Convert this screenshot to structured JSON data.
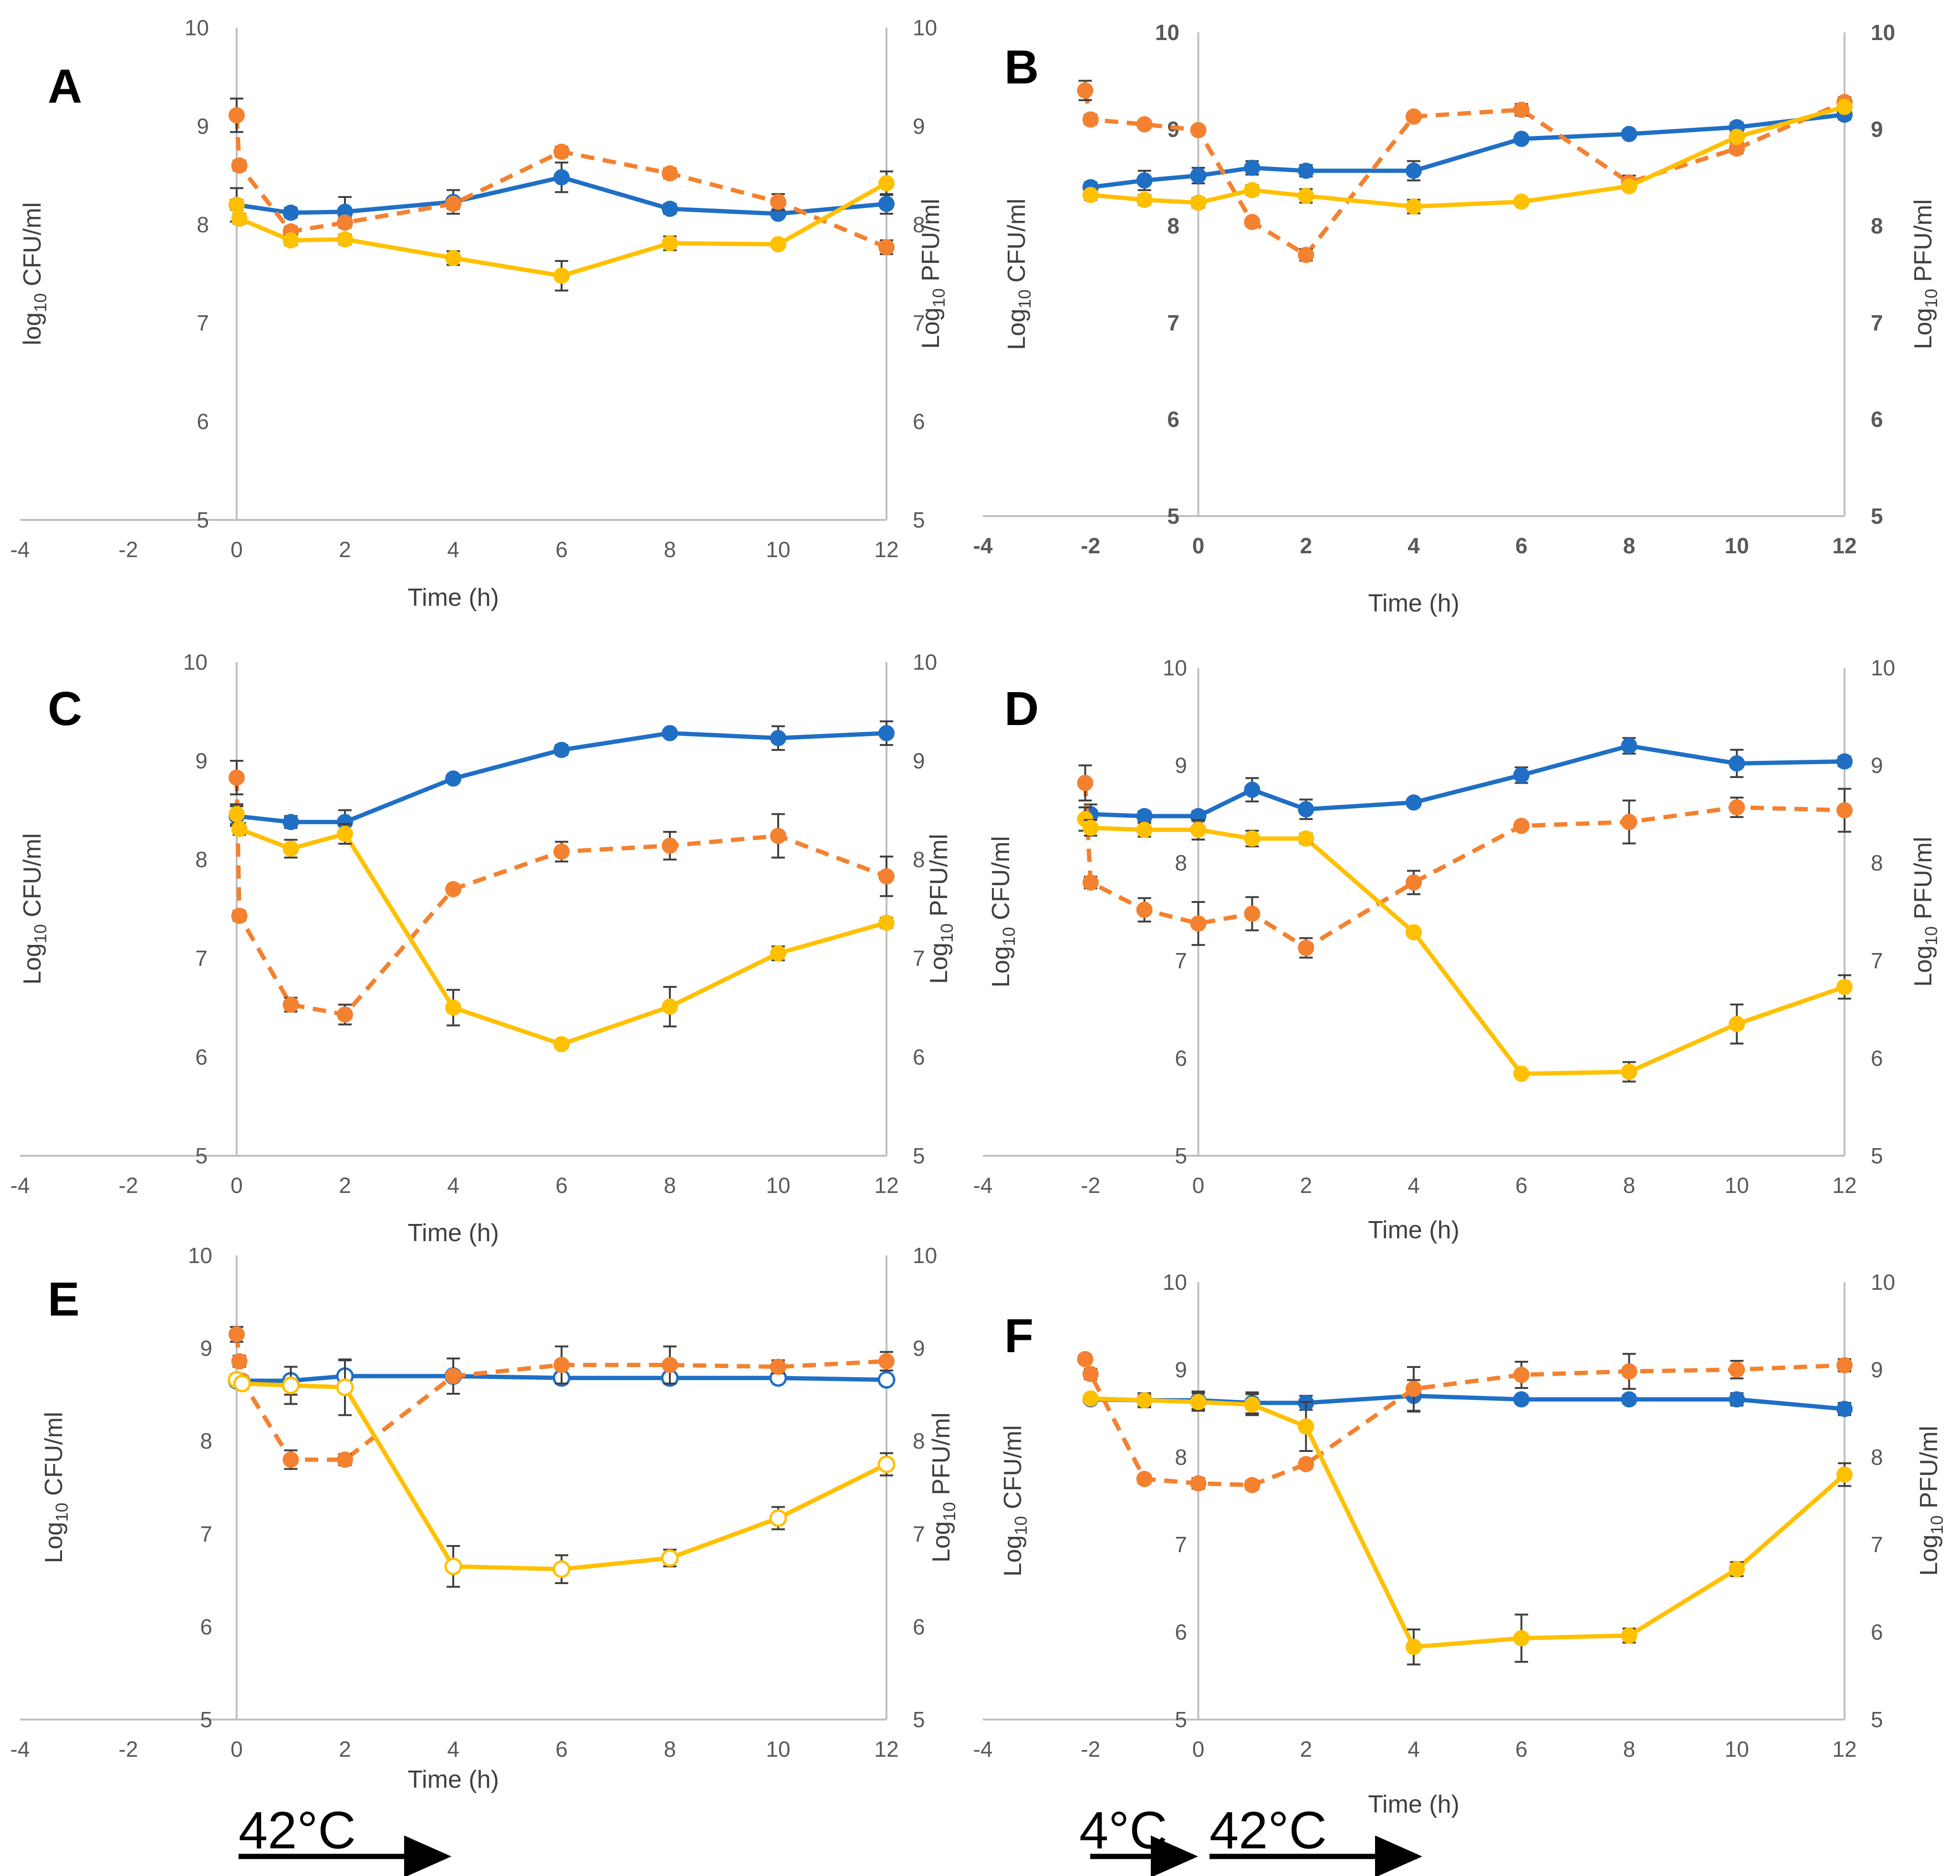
{
  "colors": {
    "blue": "#1f6fc5",
    "orange": "#f4812f",
    "yellow": "#ffc000",
    "axis": "#bfbfbf",
    "errbar": "#404040"
  },
  "chart_data": [
    {
      "type": "line",
      "panel": "A",
      "xlabel": "Time (h)",
      "ylabel_left": "log10 CFU/ml",
      "ylabel_right": "Log10 PFU/ml",
      "xlim": [
        -4,
        12
      ],
      "ylim": [
        5,
        10
      ],
      "xticks": [
        -4,
        -2,
        0,
        2,
        4,
        6,
        8,
        10,
        12
      ],
      "yticks": [
        5,
        6,
        7,
        8,
        9,
        10
      ],
      "bold_ticks": false,
      "series": [
        {
          "name": "blue",
          "color": "blue",
          "dashed": false,
          "hollow": false,
          "x": [
            0,
            1,
            2,
            4,
            6,
            8,
            10,
            12
          ],
          "y": [
            8.2,
            8.12,
            8.13,
            8.23,
            8.48,
            8.16,
            8.11,
            8.21
          ],
          "err": [
            0.17,
            0.05,
            0.15,
            0.12,
            0.15,
            0.05,
            0.04,
            0.1
          ]
        },
        {
          "name": "orange",
          "color": "orange",
          "dashed": true,
          "hollow": false,
          "x": [
            0,
            0.05,
            1,
            2,
            4,
            6,
            8,
            10,
            12
          ],
          "y": [
            9.11,
            8.6,
            7.93,
            8.02,
            8.21,
            8.74,
            8.52,
            8.23,
            7.77
          ],
          "err": [
            0.17,
            0.05,
            0.05,
            0.05,
            0.05,
            0.05,
            0.05,
            0.08,
            0.07
          ]
        },
        {
          "name": "yellow",
          "color": "yellow",
          "dashed": false,
          "hollow": false,
          "x": [
            0,
            0.05,
            1,
            2,
            4,
            6,
            8,
            10,
            12
          ],
          "y": [
            8.2,
            8.06,
            7.84,
            7.85,
            7.66,
            7.48,
            7.81,
            7.8,
            8.42
          ],
          "err": [
            0.05,
            0.05,
            0.05,
            0.05,
            0.07,
            0.15,
            0.07,
            0.04,
            0.12
          ]
        }
      ]
    },
    {
      "type": "line",
      "panel": "B",
      "xlabel": "Time (h)",
      "ylabel_left": "Log10 CFU/ml",
      "ylabel_right": "Log10 PFU/ml",
      "xlim": [
        -4,
        12
      ],
      "ylim": [
        5,
        10
      ],
      "xticks": [
        -4,
        -2,
        0,
        2,
        4,
        6,
        8,
        10,
        12
      ],
      "yticks": [
        5,
        6,
        7,
        8,
        9,
        10
      ],
      "bold_ticks": true,
      "series": [
        {
          "name": "blue",
          "color": "blue",
          "dashed": false,
          "hollow": false,
          "x": [
            -2,
            -1,
            0,
            1,
            2,
            4,
            6,
            8,
            10,
            12
          ],
          "y": [
            8.4,
            8.47,
            8.52,
            8.6,
            8.57,
            8.57,
            8.9,
            8.95,
            9.02,
            9.15
          ],
          "err": [
            0.05,
            0.1,
            0.08,
            0.07,
            0.06,
            0.1,
            0.04,
            0.04,
            0.05,
            0.05
          ]
        },
        {
          "name": "orange",
          "color": "orange",
          "dashed": true,
          "hollow": false,
          "x": [
            -2.1,
            -2,
            -1,
            0,
            1,
            2,
            4,
            6,
            8,
            10,
            12
          ],
          "y": [
            9.4,
            9.1,
            9.05,
            8.99,
            8.04,
            7.7,
            9.13,
            9.2,
            8.45,
            8.8,
            9.28
          ],
          "err": [
            0.1,
            0.05,
            0.04,
            0.04,
            0.04,
            0.06,
            0.04,
            0.06,
            0.07,
            0.05,
            0.05
          ]
        },
        {
          "name": "yellow",
          "color": "yellow",
          "dashed": false,
          "hollow": false,
          "x": [
            -2,
            -1,
            0,
            1,
            2,
            4,
            6,
            8,
            10,
            12
          ],
          "y": [
            8.32,
            8.27,
            8.24,
            8.37,
            8.31,
            8.2,
            8.25,
            8.41,
            8.92,
            9.23
          ],
          "err": [
            0.05,
            0.05,
            0.05,
            0.05,
            0.07,
            0.07,
            0.04,
            0.04,
            0.05,
            0.05
          ]
        }
      ]
    },
    {
      "type": "line",
      "panel": "C",
      "xlabel": "Time (h)",
      "ylabel_left": "Log10 CFU/ml",
      "ylabel_right": "Log10 PFU/ml",
      "xlim": [
        -4,
        12
      ],
      "ylim": [
        5,
        10
      ],
      "xticks": [
        -4,
        -2,
        0,
        2,
        4,
        6,
        8,
        10,
        12
      ],
      "yticks": [
        5,
        6,
        7,
        8,
        9,
        10
      ],
      "bold_ticks": false,
      "series": [
        {
          "name": "blue",
          "color": "blue",
          "dashed": false,
          "hollow": false,
          "x": [
            0,
            1,
            2,
            4,
            6,
            8,
            10,
            12
          ],
          "y": [
            8.44,
            8.38,
            8.38,
            8.82,
            9.11,
            9.28,
            9.23,
            9.28
          ],
          "err": [
            0.1,
            0.06,
            0.12,
            0.03,
            0.05,
            0.03,
            0.12,
            0.12
          ]
        },
        {
          "name": "orange",
          "color": "orange",
          "dashed": true,
          "hollow": false,
          "x": [
            0,
            0.05,
            1,
            2,
            4,
            6,
            8,
            10,
            12
          ],
          "y": [
            8.83,
            7.43,
            6.53,
            6.43,
            7.7,
            8.08,
            8.14,
            8.24,
            7.83
          ],
          "err": [
            0.17,
            0.05,
            0.07,
            0.1,
            0.03,
            0.1,
            0.14,
            0.22,
            0.2
          ]
        },
        {
          "name": "yellow",
          "color": "yellow",
          "dashed": false,
          "hollow": false,
          "x": [
            0,
            0.05,
            1,
            2,
            4,
            6,
            8,
            10,
            12
          ],
          "y": [
            8.46,
            8.31,
            8.11,
            8.26,
            6.5,
            6.13,
            6.51,
            7.05,
            7.36
          ],
          "err": [
            0.1,
            0.06,
            0.09,
            0.1,
            0.18,
            0.04,
            0.2,
            0.07,
            0.05
          ]
        }
      ]
    },
    {
      "type": "line",
      "panel": "D",
      "xlabel": "Time (h)",
      "ylabel_left": "Log10 CFU/ml",
      "ylabel_right": "Log10 PFU/ml",
      "xlim": [
        -4,
        12
      ],
      "ylim": [
        5,
        10
      ],
      "xticks": [
        -4,
        -2,
        0,
        2,
        4,
        6,
        8,
        10,
        12
      ],
      "yticks": [
        5,
        6,
        7,
        8,
        9,
        10
      ],
      "bold_ticks": false,
      "series": [
        {
          "name": "blue",
          "color": "blue",
          "dashed": false,
          "hollow": false,
          "x": [
            -2,
            -1,
            0,
            1,
            2,
            4,
            6,
            8,
            10,
            12
          ],
          "y": [
            8.5,
            8.48,
            8.48,
            8.75,
            8.55,
            8.62,
            8.9,
            9.2,
            9.02,
            9.04
          ],
          "err": [
            0.1,
            0.05,
            0.05,
            0.12,
            0.1,
            0.04,
            0.08,
            0.08,
            0.14,
            0.05
          ]
        },
        {
          "name": "orange",
          "color": "orange",
          "dashed": true,
          "hollow": false,
          "x": [
            -2.1,
            -2,
            -1,
            0,
            1,
            2,
            4,
            6,
            8,
            10,
            12
          ],
          "y": [
            8.82,
            7.8,
            7.52,
            7.38,
            7.48,
            7.13,
            7.8,
            8.38,
            8.42,
            8.57,
            8.54
          ],
          "err": [
            0.18,
            0.06,
            0.12,
            0.22,
            0.17,
            0.1,
            0.12,
            0.04,
            0.22,
            0.1,
            0.22
          ]
        },
        {
          "name": "yellow",
          "color": "yellow",
          "dashed": false,
          "hollow": false,
          "x": [
            -2.1,
            -2,
            -1,
            0,
            1,
            2,
            4,
            6,
            8,
            10,
            12
          ],
          "y": [
            8.45,
            8.36,
            8.34,
            8.34,
            8.25,
            8.25,
            7.29,
            5.84,
            5.86,
            6.35,
            6.73
          ],
          "err": [
            0.12,
            0.08,
            0.07,
            0.1,
            0.08,
            0.05,
            0.04,
            0.03,
            0.1,
            0.2,
            0.12
          ]
        }
      ]
    },
    {
      "type": "line",
      "panel": "E",
      "xlabel": "Time (h)",
      "ylabel_left": "Log10 CFU/ml",
      "ylabel_right": "Log10 PFU/ml",
      "xlim": [
        -4,
        12
      ],
      "ylim": [
        5,
        10
      ],
      "xticks": [
        -4,
        -2,
        0,
        2,
        4,
        6,
        8,
        10,
        12
      ],
      "yticks": [
        5,
        6,
        7,
        8,
        9,
        10
      ],
      "bold_ticks": false,
      "series": [
        {
          "name": "blue",
          "color": "blue",
          "dashed": false,
          "hollow": true,
          "x": [
            0,
            1,
            2,
            4,
            6,
            8,
            10,
            12
          ],
          "y": [
            8.65,
            8.65,
            8.7,
            8.7,
            8.68,
            8.68,
            8.68,
            8.66
          ],
          "err": [
            0.06,
            0.15,
            0.17,
            0.04,
            0.05,
            0.04,
            0.04,
            0.03
          ]
        },
        {
          "name": "orange",
          "color": "orange",
          "dashed": true,
          "hollow": false,
          "x": [
            0,
            0.05,
            0.1,
            1,
            2,
            4,
            6,
            8,
            10,
            12
          ],
          "y": [
            9.15,
            8.86,
            8.65,
            7.8,
            7.8,
            8.7,
            8.82,
            8.82,
            8.8,
            8.86
          ],
          "err": [
            0.08,
            0.06,
            0.05,
            0.1,
            0.06,
            0.19,
            0.2,
            0.2,
            0.07,
            0.1
          ]
        },
        {
          "name": "yellow",
          "color": "yellow",
          "dashed": false,
          "hollow": true,
          "x": [
            0,
            0.1,
            1,
            2,
            4,
            6,
            8,
            10,
            12
          ],
          "y": [
            8.66,
            8.62,
            8.6,
            8.58,
            6.65,
            6.62,
            6.74,
            7.17,
            7.75
          ],
          "err": [
            0.06,
            0.06,
            0.2,
            0.3,
            0.22,
            0.15,
            0.09,
            0.12,
            0.12
          ]
        }
      ]
    },
    {
      "type": "line",
      "panel": "F",
      "xlabel": "Time (h)",
      "ylabel_left": "Log10 CFU/ml",
      "ylabel_right": "Log10 PFU/ml",
      "xlim": [
        -4,
        12
      ],
      "ylim": [
        5,
        10
      ],
      "xticks": [
        -4,
        -2,
        0,
        2,
        4,
        6,
        8,
        10,
        12
      ],
      "yticks": [
        5,
        6,
        7,
        8,
        9,
        10
      ],
      "bold_ticks": false,
      "series": [
        {
          "name": "blue",
          "color": "blue",
          "dashed": false,
          "hollow": false,
          "x": [
            -2,
            -1,
            0,
            1,
            2,
            4,
            6,
            8,
            10,
            12
          ],
          "y": [
            8.66,
            8.65,
            8.65,
            8.62,
            8.62,
            8.7,
            8.66,
            8.66,
            8.66,
            8.55
          ],
          "err": [
            0.04,
            0.08,
            0.1,
            0.12,
            0.08,
            0.18,
            0.05,
            0.05,
            0.07,
            0.07
          ]
        },
        {
          "name": "orange",
          "color": "orange",
          "dashed": true,
          "hollow": false,
          "x": [
            -2.1,
            -2,
            -1,
            0,
            1,
            2,
            4,
            6,
            8,
            10,
            12
          ],
          "y": [
            9.12,
            8.95,
            7.75,
            7.7,
            7.68,
            7.92,
            8.78,
            8.94,
            8.98,
            9.0,
            9.05
          ],
          "err": [
            0.05,
            0.06,
            0.05,
            0.06,
            0.05,
            0.05,
            0.25,
            0.15,
            0.2,
            0.1,
            0.07
          ]
        },
        {
          "name": "yellow",
          "color": "yellow",
          "dashed": false,
          "hollow": false,
          "x": [
            -2,
            -1,
            0,
            1,
            2,
            4,
            6,
            8,
            10,
            12
          ],
          "y": [
            8.67,
            8.65,
            8.63,
            8.6,
            8.35,
            5.83,
            5.93,
            5.96,
            6.72,
            7.8
          ],
          "err": [
            0.04,
            0.06,
            0.1,
            0.12,
            0.28,
            0.2,
            0.27,
            0.08,
            0.08,
            0.13
          ]
        }
      ]
    }
  ],
  "annotations": {
    "e_temp_label": "42°C",
    "f_temp_label_1": "4°C",
    "f_temp_label_2": "42°C"
  }
}
